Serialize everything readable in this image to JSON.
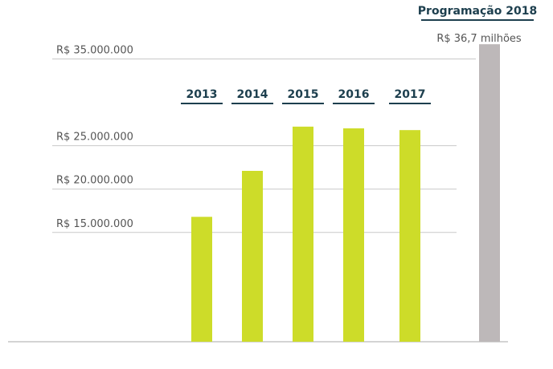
{
  "chart_data": {
    "type": "bar",
    "categories": [
      "2013",
      "2014",
      "2015",
      "2016",
      "2017",
      "Programação 2018"
    ],
    "values": [
      16800000,
      22100000,
      27200000,
      27000000,
      26800000,
      36700000
    ],
    "value_labels": [
      null,
      null,
      null,
      null,
      null,
      "R$ 36,7 milhões"
    ],
    "colors": [
      "#cddc29",
      "#cddc29",
      "#cddc29",
      "#cddc29",
      "#cddc29",
      "#bdb8b9"
    ],
    "ylim": [
      2400000,
      41800000
    ],
    "yticks": [
      {
        "value": 15000000,
        "label": "R$ 15.000.000"
      },
      {
        "value": 20000000,
        "label": "R$ 20.000.000"
      },
      {
        "value": 25000000,
        "label": "R$ 25.000.000"
      },
      {
        "value": 35000000,
        "label": "R$ 35.000.000"
      }
    ],
    "grid": true
  }
}
